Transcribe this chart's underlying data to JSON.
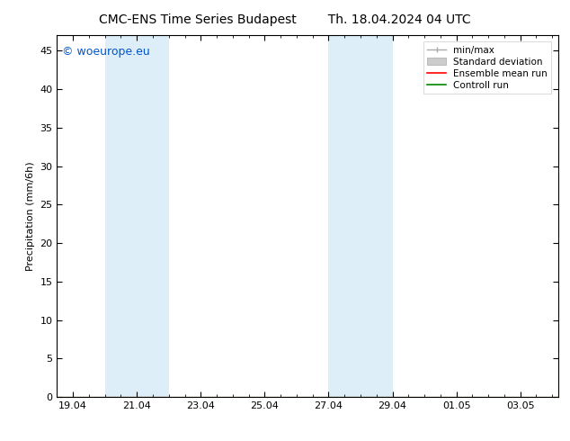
{
  "title_left": "CMC-ENS Time Series Budapest",
  "title_right": "Th. 18.04.2024 04 UTC",
  "ylabel": "Precipitation (mm/6h)",
  "ylim": [
    0,
    47
  ],
  "yticks": [
    0,
    5,
    10,
    15,
    20,
    25,
    30,
    35,
    40,
    45
  ],
  "xtick_labels": [
    "19.04",
    "21.04",
    "23.04",
    "25.04",
    "27.04",
    "29.04",
    "01.05",
    "03.05"
  ],
  "background_color": "#ffffff",
  "shaded_color": "#ddeef8",
  "watermark_text": "© woeurope.eu",
  "watermark_color": "#0055cc",
  "legend_labels": [
    "min/max",
    "Standard deviation",
    "Ensemble mean run",
    "Controll run"
  ],
  "legend_colors_line": [
    "#aaaaaa",
    "#cccccc",
    "#ff0000",
    "#008800"
  ],
  "font_size_title": 10,
  "font_size_ticks": 8,
  "font_size_ylabel": 8,
  "font_size_legend": 7.5,
  "font_size_watermark": 9
}
